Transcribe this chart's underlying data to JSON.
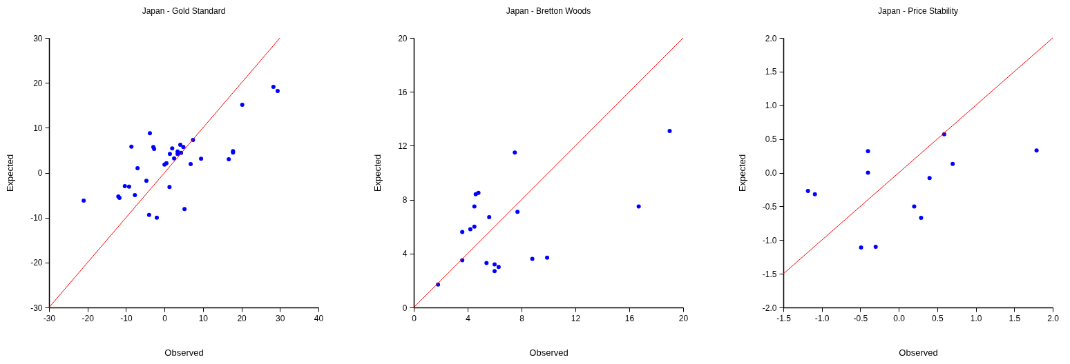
{
  "chart_data": [
    {
      "type": "scatter",
      "title": "Japan - Gold Standard",
      "xlabel": "Observed",
      "ylabel": "Expected",
      "xlim": [
        -30,
        40
      ],
      "ylim": [
        -30,
        30
      ],
      "xticks": [
        -30,
        -20,
        -10,
        0,
        10,
        20,
        30,
        40
      ],
      "yticks": [
        -30,
        -20,
        -10,
        0,
        10,
        20,
        30
      ],
      "grid": false,
      "series": [
        {
          "type": "scatter",
          "marker": "circle",
          "color": "#0000ff",
          "x": [
            -21.0,
            -12.0,
            -11.7,
            -10.3,
            -9.2,
            -8.6,
            -7.7,
            -7.0,
            -4.7,
            -3.8,
            -2.9,
            -2.7,
            -4.0,
            -2.0,
            0.0,
            0.5,
            1.3,
            1.4,
            2.0,
            2.5,
            3.4,
            3.4,
            4.1,
            4.3,
            4.9,
            5.2,
            6.8,
            7.4,
            9.5,
            16.7,
            17.8,
            17.8,
            20.2,
            28.3,
            29.4
          ],
          "values": [
            -6.2,
            -5.3,
            -5.6,
            -3.0,
            -3.1,
            5.8,
            -5.0,
            1.0,
            -1.8,
            8.8,
            5.7,
            5.3,
            -9.4,
            -10.0,
            1.8,
            2.1,
            -3.2,
            4.2,
            5.4,
            3.2,
            4.2,
            4.7,
            6.2,
            4.4,
            5.7,
            -8.1,
            1.9,
            7.3,
            3.1,
            3.0,
            4.8,
            4.5,
            15.1,
            19.1,
            18.2
          ]
        },
        {
          "type": "line",
          "color": "#ff0000",
          "x": [
            -30,
            30
          ],
          "values": [
            -30,
            30
          ]
        }
      ]
    },
    {
      "type": "scatter",
      "title": "Japan - Bretton Woods",
      "xlabel": "Observed",
      "ylabel": "Expected",
      "xlim": [
        0,
        20
      ],
      "ylim": [
        0,
        20
      ],
      "xticks": [
        0,
        4,
        8,
        12,
        16,
        20
      ],
      "yticks": [
        0,
        4,
        8,
        12,
        16,
        20
      ],
      "grid": false,
      "series": [
        {
          "type": "scatter",
          "marker": "circle",
          "color": "#0000ff",
          "x": [
            1.8,
            3.6,
            3.6,
            4.2,
            4.5,
            4.5,
            4.6,
            4.8,
            5.6,
            5.4,
            6.0,
            6.3,
            6.0,
            7.5,
            7.7,
            8.8,
            9.9,
            16.7,
            19.0
          ],
          "values": [
            1.7,
            3.5,
            5.6,
            5.8,
            6.0,
            7.5,
            8.4,
            8.5,
            6.7,
            3.3,
            3.2,
            3.0,
            2.7,
            11.5,
            7.1,
            3.6,
            3.7,
            7.5,
            13.1
          ]
        },
        {
          "type": "line",
          "color": "#ff0000",
          "x": [
            0,
            20
          ],
          "values": [
            0,
            20
          ]
        }
      ]
    },
    {
      "type": "scatter",
      "title": "Japan - Price Stability",
      "xlabel": "Observed",
      "ylabel": "Expected",
      "xlim": [
        -1.5,
        2.0
      ],
      "ylim": [
        -2.0,
        2.0
      ],
      "xticks": [
        {
          "value": -1.5,
          "label": "-1.5"
        },
        {
          "value": -1,
          "label": "-1.0"
        },
        {
          "value": -0.5,
          "label": "-0.5"
        },
        {
          "value": 0,
          "label": "0.0"
        },
        {
          "value": 0.5,
          "label": "0.5"
        },
        {
          "value": 1,
          "label": "1.0"
        },
        {
          "value": 1.5,
          "label": "1.5"
        },
        {
          "value": 2,
          "label": "2.0"
        }
      ],
      "yticks": [
        {
          "value": -2,
          "label": "-2.0"
        },
        {
          "value": -1.5,
          "label": "-1.5"
        },
        {
          "value": -1,
          "label": "-1.0"
        },
        {
          "value": -0.5,
          "label": "-0.5"
        },
        {
          "value": 0,
          "label": "0.0"
        },
        {
          "value": 0.5,
          "label": "0.5"
        },
        {
          "value": 1,
          "label": "1.0"
        },
        {
          "value": 1.5,
          "label": "1.5"
        },
        {
          "value": 2,
          "label": "2.0"
        }
      ],
      "grid": false,
      "series": [
        {
          "type": "scatter",
          "marker": "circle",
          "color": "#0000ff",
          "x": [
            -1.18,
            -1.09,
            -0.49,
            -0.4,
            -0.4,
            -0.3,
            0.2,
            0.29,
            0.4,
            0.59,
            0.7,
            1.79
          ],
          "values": [
            -0.27,
            -0.32,
            -1.11,
            0.32,
            0.0,
            -1.1,
            -0.5,
            -0.67,
            -0.08,
            0.57,
            0.13,
            0.33
          ]
        },
        {
          "type": "line",
          "color": "#ff0000",
          "x": [
            -1.5,
            2.0
          ],
          "values": [
            -1.5,
            2.0
          ]
        }
      ]
    }
  ]
}
